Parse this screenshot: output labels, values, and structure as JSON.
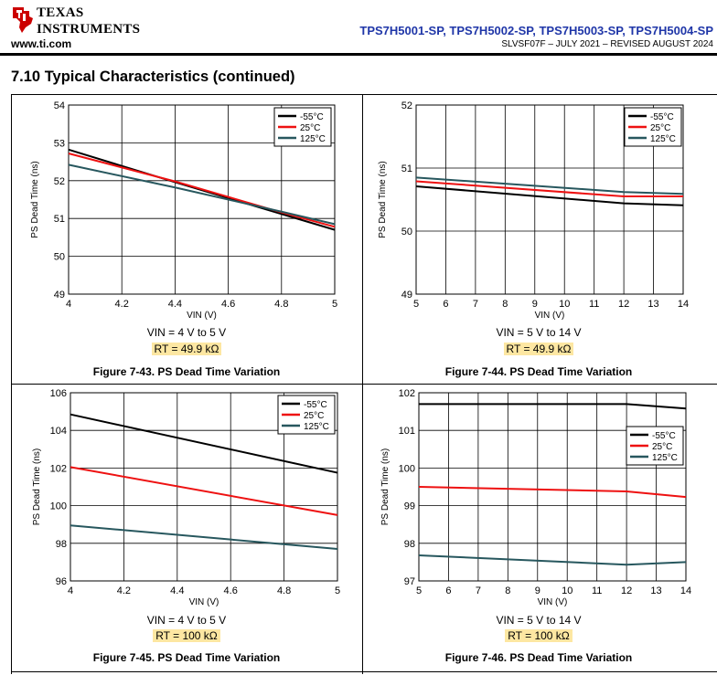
{
  "header": {
    "logo_line1": "TEXAS",
    "logo_line2": "INSTRUMENTS",
    "website": "www.ti.com",
    "part_numbers": "TPS7H5001-SP, TPS7H5002-SP, TPS7H5003-SP, TPS7H5004-SP",
    "doc_id": "SLVSF07F – JULY 2021 – REVISED AUGUST 2024"
  },
  "section_title": "7.10 Typical Characteristics (continued)",
  "colors": {
    "s-55": "#000000",
    "s25": "#ee1111",
    "s125": "#27575e",
    "highlight": "#fde7a2"
  },
  "figures": [
    {
      "condition": "VIN = 4 V to 5 V",
      "rt": "RT = 49.9 kΩ",
      "caption": "Figure 7-43. PS Dead Time Variation",
      "chart_data": {
        "type": "line",
        "xlabel": "VIN (V)",
        "ylabel": "PS Dead Time (ns)",
        "xlim": [
          4,
          5
        ],
        "ylim": [
          49,
          54
        ],
        "xticks": [
          "4",
          "4.2",
          "4.4",
          "4.6",
          "4.8",
          "5"
        ],
        "yticks": [
          "49",
          "50",
          "51",
          "52",
          "53",
          "54"
        ],
        "legend": "top-right",
        "grid": true,
        "series": [
          {
            "name": "-55°C",
            "color": "#000000",
            "x": [
              4,
              4.4,
              4.8,
              5
            ],
            "y": [
              52.82,
              51.96,
              51.12,
              50.7
            ]
          },
          {
            "name": "25°C",
            "color": "#ee1111",
            "x": [
              4,
              4.4,
              4.8,
              5
            ],
            "y": [
              52.72,
              51.98,
              51.16,
              50.78
            ]
          },
          {
            "name": "125°C",
            "color": "#27575e",
            "x": [
              4,
              4.4,
              4.8,
              5
            ],
            "y": [
              52.42,
              51.82,
              51.18,
              50.85
            ]
          }
        ]
      }
    },
    {
      "condition": "VIN = 5 V to 14 V",
      "rt": "RT = 49.9 kΩ",
      "caption": "Figure 7-44. PS Dead Time Variation",
      "chart_data": {
        "type": "line",
        "xlabel": "VIN (V)",
        "ylabel": "PS Dead Time (ns)",
        "xlim": [
          5,
          14
        ],
        "ylim": [
          49,
          52
        ],
        "xticks": [
          "5",
          "6",
          "7",
          "8",
          "9",
          "10",
          "11",
          "12",
          "13",
          "14"
        ],
        "yticks": [
          "49",
          "50",
          "51",
          "52"
        ],
        "legend": "top-right",
        "grid": true,
        "series": [
          {
            "name": "-55°C",
            "color": "#000000",
            "x": [
              5,
              12,
              14
            ],
            "y": [
              50.71,
              50.44,
              50.41
            ]
          },
          {
            "name": "25°C",
            "color": "#ee1111",
            "x": [
              5,
              12,
              14
            ],
            "y": [
              50.79,
              50.55,
              50.55
            ]
          },
          {
            "name": "125°C",
            "color": "#27575e",
            "x": [
              5,
              12,
              14
            ],
            "y": [
              50.85,
              50.62,
              50.59
            ]
          }
        ]
      }
    },
    {
      "condition": "VIN = 4 V to 5 V",
      "rt": "RT = 100 kΩ",
      "caption": "Figure 7-45. PS Dead Time Variation",
      "chart_data": {
        "type": "line",
        "xlabel": "VIN (V)",
        "ylabel": "PS Dead Time (ns)",
        "xlim": [
          4,
          5
        ],
        "ylim": [
          96,
          106
        ],
        "xticks": [
          "4",
          "4.2",
          "4.4",
          "4.6",
          "4.8",
          "5"
        ],
        "yticks": [
          "96",
          "98",
          "100",
          "102",
          "104",
          "106"
        ],
        "legend": "top-right",
        "grid": true,
        "series": [
          {
            "name": "-55°C",
            "color": "#000000",
            "x": [
              4,
              5
            ],
            "y": [
              104.85,
              101.75
            ]
          },
          {
            "name": "25°C",
            "color": "#ee1111",
            "x": [
              4,
              5
            ],
            "y": [
              102.05,
              99.5
            ]
          },
          {
            "name": "125°C",
            "color": "#27575e",
            "x": [
              4,
              5
            ],
            "y": [
              98.95,
              97.7
            ]
          }
        ]
      }
    },
    {
      "condition": "VIN = 5 V to 14 V",
      "rt": "RT = 100 kΩ",
      "caption": "Figure 7-46. PS Dead Time Variation",
      "chart_data": {
        "type": "line",
        "xlabel": "VIN (V)",
        "ylabel": "PS Dead Time (ns)",
        "xlim": [
          5,
          14
        ],
        "ylim": [
          97,
          102
        ],
        "xticks": [
          "5",
          "6",
          "7",
          "8",
          "9",
          "10",
          "11",
          "12",
          "13",
          "14"
        ],
        "yticks": [
          "97",
          "98",
          "99",
          "100",
          "101",
          "102"
        ],
        "legend": "right",
        "grid": true,
        "series": [
          {
            "name": "-55°C",
            "color": "#000000",
            "x": [
              5,
              12,
              14
            ],
            "y": [
              101.7,
              101.7,
              101.58
            ]
          },
          {
            "name": "25°C",
            "color": "#ee1111",
            "x": [
              5,
              12,
              14
            ],
            "y": [
              99.5,
              99.38,
              99.23
            ]
          },
          {
            "name": "125°C",
            "color": "#27575e",
            "x": [
              5,
              12,
              14
            ],
            "y": [
              97.68,
              97.43,
              97.5
            ]
          }
        ]
      }
    }
  ]
}
